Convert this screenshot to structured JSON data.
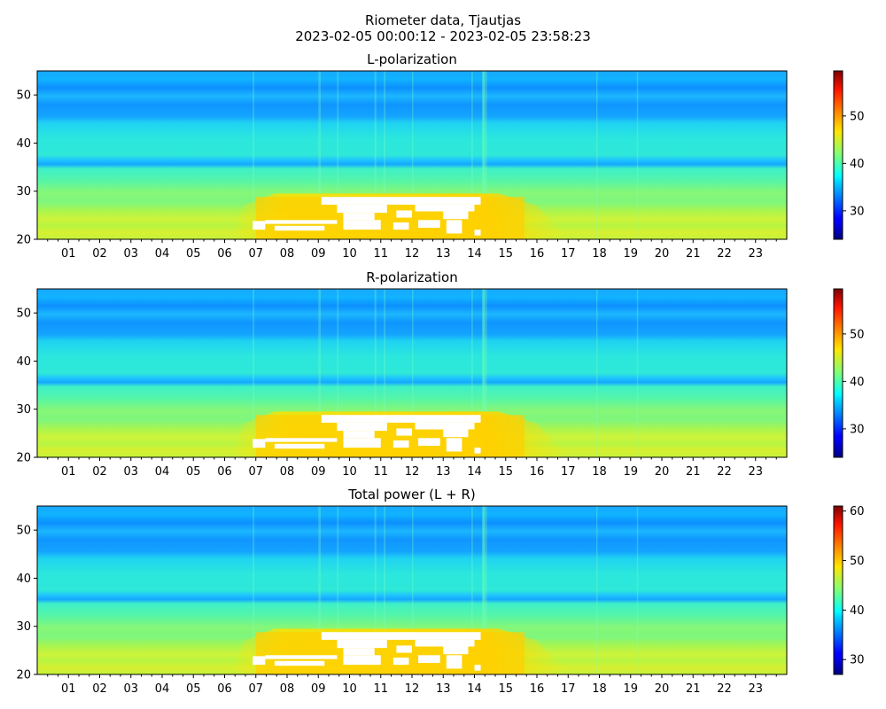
{
  "figure": {
    "title_line1": "Riometer data, Tjautjas",
    "title_line2": "2023-02-05 00:00:12 - 2023-02-05 23:58:23"
  },
  "colormap": "jet",
  "chart_data": [
    {
      "type": "heatmap",
      "title": "L-polarization",
      "xlabel": "",
      "ylabel": "",
      "xlim": [
        0,
        24
      ],
      "ylim": [
        20,
        55
      ],
      "x_tick_labels": [
        "01",
        "02",
        "03",
        "04",
        "05",
        "06",
        "07",
        "08",
        "09",
        "10",
        "11",
        "12",
        "13",
        "14",
        "15",
        "16",
        "17",
        "18",
        "19",
        "20",
        "21",
        "22",
        "23"
      ],
      "y_ticks": [
        20,
        30,
        40,
        50
      ],
      "colorbar": {
        "vmin": 24,
        "vmax": 59.5,
        "ticks": [
          30,
          40,
          50
        ]
      },
      "saturated_region": {
        "x_range_hours": [
          6.7,
          14.3
        ],
        "y_range": [
          20.5,
          29
        ],
        "color": "white"
      }
    },
    {
      "type": "heatmap",
      "title": "R-polarization",
      "xlabel": "",
      "ylabel": "",
      "xlim": [
        0,
        24
      ],
      "ylim": [
        20,
        55
      ],
      "x_tick_labels": [
        "01",
        "02",
        "03",
        "04",
        "05",
        "06",
        "07",
        "08",
        "09",
        "10",
        "11",
        "12",
        "13",
        "14",
        "15",
        "16",
        "17",
        "18",
        "19",
        "20",
        "21",
        "22",
        "23"
      ],
      "y_ticks": [
        20,
        30,
        40,
        50
      ],
      "colorbar": {
        "vmin": 24,
        "vmax": 59.5,
        "ticks": [
          30,
          40,
          50
        ]
      },
      "saturated_region": {
        "x_range_hours": [
          6.7,
          14.3
        ],
        "y_range": [
          20.5,
          29
        ],
        "color": "white"
      }
    },
    {
      "type": "heatmap",
      "title": "Total power (L + R)",
      "xlabel": "",
      "ylabel": "",
      "xlim": [
        0,
        24
      ],
      "ylim": [
        20,
        55
      ],
      "x_tick_labels": [
        "01",
        "02",
        "03",
        "04",
        "05",
        "06",
        "07",
        "08",
        "09",
        "10",
        "11",
        "12",
        "13",
        "14",
        "15",
        "16",
        "17",
        "18",
        "19",
        "20",
        "21",
        "22",
        "23"
      ],
      "y_ticks": [
        20,
        30,
        40,
        50
      ],
      "colorbar": {
        "vmin": 27,
        "vmax": 61,
        "ticks": [
          30,
          40,
          50,
          60
        ]
      },
      "saturated_region": {
        "x_range_hours": [
          6.7,
          14.3
        ],
        "y_range": [
          20.5,
          29
        ],
        "color": "white"
      }
    }
  ]
}
